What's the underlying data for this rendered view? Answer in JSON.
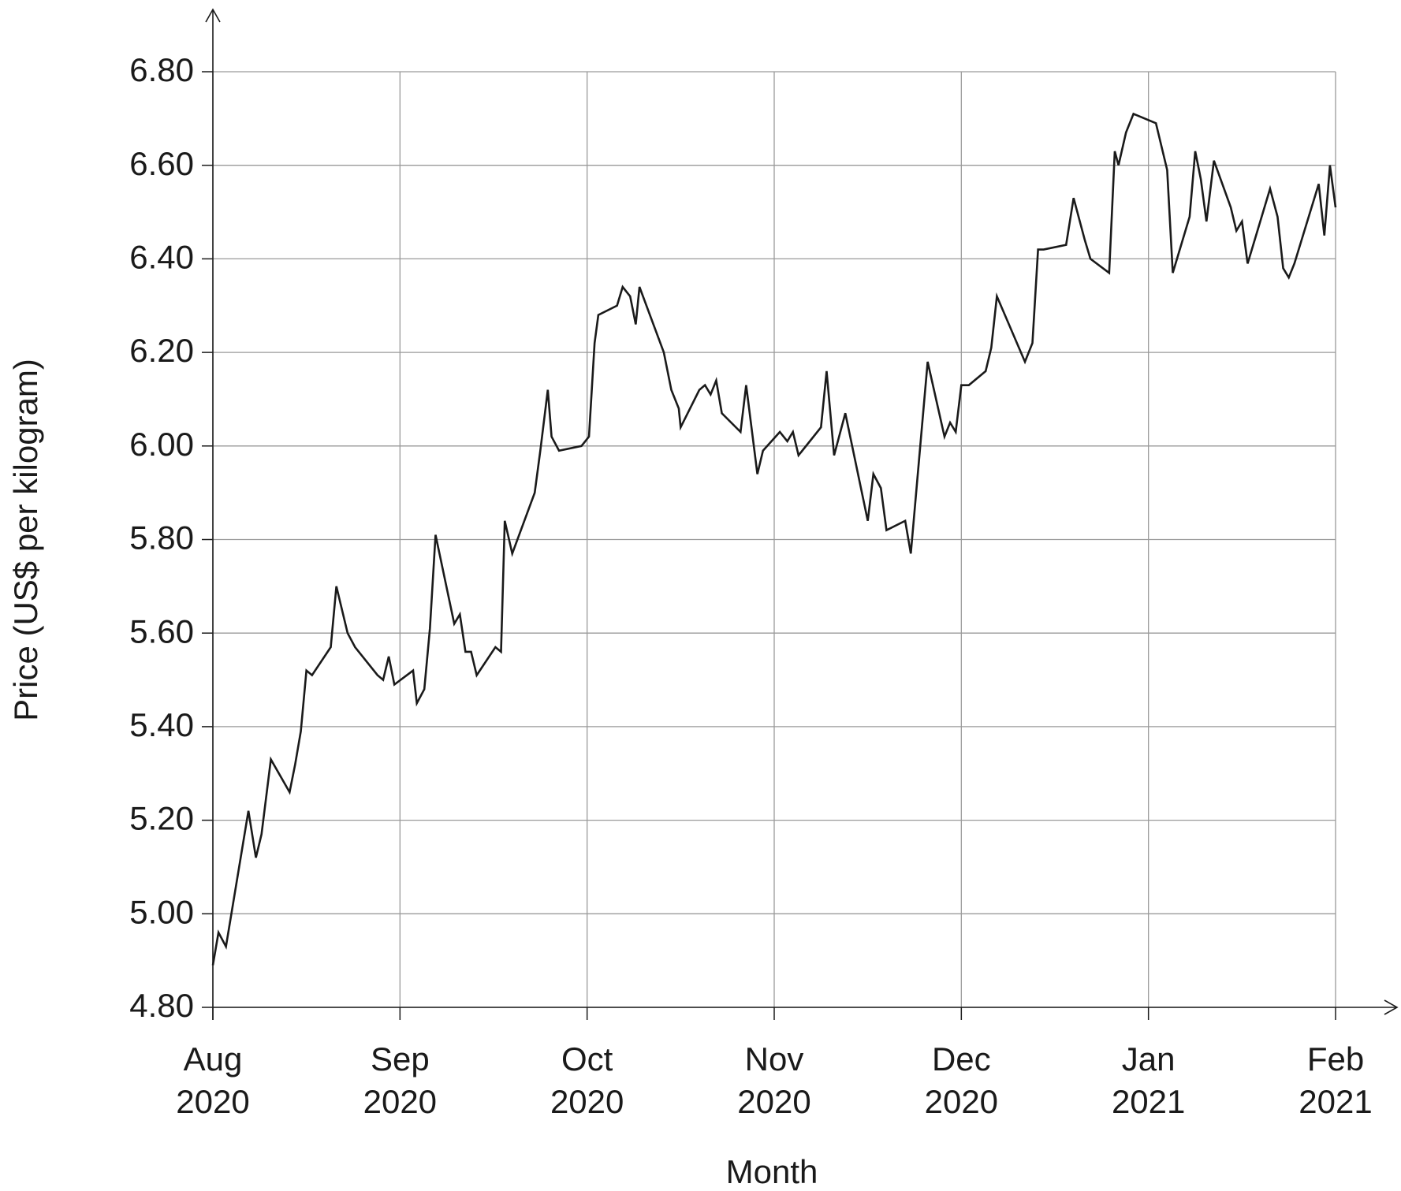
{
  "chart_data": {
    "type": "line",
    "x_label": "Month",
    "y_label": "Price (US$ per kilogram)",
    "xlim": [
      0,
      6
    ],
    "xticks": [
      {
        "value": 0,
        "label": "Aug\n2020"
      },
      {
        "value": 1,
        "label": "Sep\n2020"
      },
      {
        "value": 2,
        "label": "Oct\n2020"
      },
      {
        "value": 3,
        "label": "Nov\n2020"
      },
      {
        "value": 4,
        "label": "Dec\n2020"
      },
      {
        "value": 5,
        "label": "Jan\n2021"
      },
      {
        "value": 6,
        "label": "Feb\n2021"
      }
    ],
    "ylim": [
      4.8,
      6.8
    ],
    "yticks": [
      {
        "value": 4.8,
        "label": "4.80"
      },
      {
        "value": 5.0,
        "label": "5.00"
      },
      {
        "value": 5.2,
        "label": "5.20"
      },
      {
        "value": 5.4,
        "label": "5.40"
      },
      {
        "value": 5.6,
        "label": "5.60"
      },
      {
        "value": 5.8,
        "label": "5.80"
      },
      {
        "value": 6.0,
        "label": "6.00"
      },
      {
        "value": 6.2,
        "label": "6.20"
      },
      {
        "value": 6.4,
        "label": "6.40"
      },
      {
        "value": 6.6,
        "label": "6.60"
      },
      {
        "value": 6.8,
        "label": "6.80"
      }
    ],
    "grid": true,
    "x": [
      0,
      0.03,
      0.07,
      0.19,
      0.23,
      0.26,
      0.31,
      0.41,
      0.44,
      0.47,
      0.5,
      0.53,
      0.63,
      0.66,
      0.72,
      0.76,
      0.88,
      0.91,
      0.94,
      0.97,
      1.07,
      1.09,
      1.13,
      1.16,
      1.19,
      1.29,
      1.32,
      1.35,
      1.38,
      1.41,
      1.51,
      1.54,
      1.56,
      1.6,
      1.72,
      1.75,
      1.79,
      1.81,
      1.85,
      1.97,
      2.01,
      2.04,
      2.06,
      2.16,
      2.19,
      2.23,
      2.26,
      2.28,
      2.41,
      2.45,
      2.49,
      2.5,
      2.6,
      2.63,
      2.66,
      2.69,
      2.72,
      2.82,
      2.85,
      2.91,
      2.94,
      3.03,
      3.07,
      3.1,
      3.13,
      3.25,
      3.28,
      3.32,
      3.38,
      3.5,
      3.53,
      3.57,
      3.6,
      3.7,
      3.73,
      3.82,
      3.91,
      3.94,
      3.97,
      4.0,
      4.04,
      4.13,
      4.16,
      4.19,
      4.34,
      4.38,
      4.41,
      4.44,
      4.56,
      4.6,
      4.66,
      4.69,
      4.79,
      4.82,
      4.84,
      4.88,
      4.92,
      5.04,
      5.1,
      5.13,
      5.22,
      5.25,
      5.28,
      5.31,
      5.35,
      5.44,
      5.47,
      5.5,
      5.53,
      5.65,
      5.69,
      5.72,
      5.75,
      5.78,
      5.91,
      5.94,
      5.97,
      6
    ],
    "series": [
      {
        "color": "#1a1a1a",
        "values": [
          4.89,
          4.96,
          4.93,
          5.22,
          5.12,
          5.17,
          5.33,
          5.26,
          5.32,
          5.39,
          5.52,
          5.51,
          5.57,
          5.7,
          5.6,
          5.57,
          5.51,
          5.5,
          5.55,
          5.49,
          5.52,
          5.45,
          5.48,
          5.61,
          5.81,
          5.62,
          5.64,
          5.56,
          5.56,
          5.51,
          5.57,
          5.56,
          5.84,
          5.77,
          5.9,
          5.99,
          6.12,
          6.02,
          5.99,
          6.0,
          6.02,
          6.22,
          6.28,
          6.3,
          6.34,
          6.32,
          6.26,
          6.34,
          6.2,
          6.12,
          6.08,
          6.04,
          6.12,
          6.13,
          6.11,
          6.14,
          6.07,
          6.03,
          6.13,
          5.94,
          5.99,
          6.03,
          6.01,
          6.03,
          5.98,
          6.04,
          6.16,
          5.98,
          6.07,
          5.84,
          5.94,
          5.91,
          5.82,
          5.84,
          5.77,
          6.18,
          6.02,
          6.05,
          6.03,
          6.13,
          6.13,
          6.16,
          6.21,
          6.32,
          6.18,
          6.22,
          6.42,
          6.42,
          6.43,
          6.53,
          6.44,
          6.4,
          6.37,
          6.63,
          6.6,
          6.67,
          6.71,
          6.69,
          6.59,
          6.37,
          6.49,
          6.63,
          6.57,
          6.48,
          6.61,
          6.51,
          6.46,
          6.48,
          6.39,
          6.55,
          6.49,
          6.38,
          6.36,
          6.39,
          6.56,
          6.45,
          6.6,
          6.51
        ]
      }
    ]
  }
}
